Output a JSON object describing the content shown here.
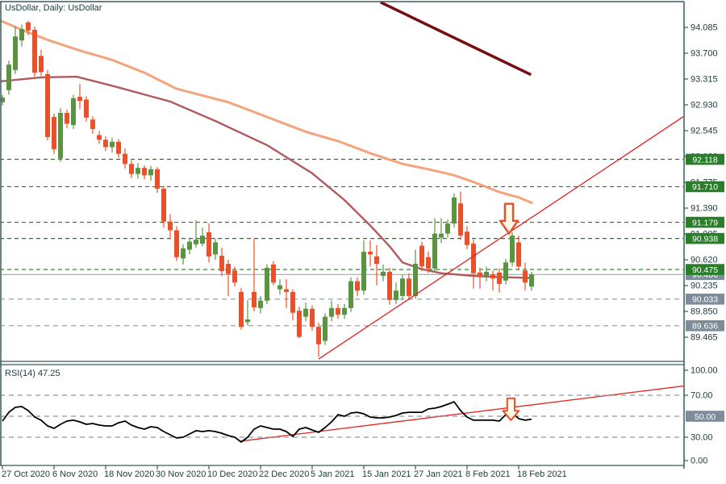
{
  "window": {
    "title": "UsDollar, Daily:  UsDollar"
  },
  "colors": {
    "background": "#ffffff",
    "frame": "#3a5a5a",
    "bull": "#5a9440",
    "bear": "#e8512a",
    "ma_slow": "#f3a47c",
    "ma_fast": "#b15a5e",
    "trendline_red": "#e42222",
    "trendline_maroon": "#750d12",
    "level_green": "#1e7d1e",
    "level_gray": "#8a97a3",
    "current_price_line": "#a6a6a6",
    "badge_green": "#2a7e2a",
    "badge_gray": "#7e8b99",
    "rsi_line": "#000000",
    "text": "#223c3c",
    "arrow_stroke": "#e8512a",
    "arrow_fill": "#fffbe8"
  },
  "chart_data": {
    "type": "candlestick",
    "symbol": "UsDollar",
    "timeframe": "Daily",
    "price_axis": {
      "ticks": [
        "94.085",
        "93.700",
        "93.315",
        "92.930",
        "92.545",
        "91.390",
        "90.620",
        "90.235",
        "89.850",
        "89.465"
      ],
      "hidden_ticks": [
        "92.160",
        "91.775",
        "91.005"
      ],
      "ylim": [
        89.15,
        94.35
      ]
    },
    "green_levels": [
      {
        "value": 92.118,
        "label": "92.118"
      },
      {
        "value": 91.71,
        "label": "91.710"
      },
      {
        "value": 91.179,
        "label": "91.179"
      },
      {
        "value": 90.938,
        "label": "90.938"
      },
      {
        "value": 90.475,
        "label": "90.475"
      }
    ],
    "gray_levels": [
      {
        "value": 90.033,
        "label": "90.033"
      },
      {
        "value": 89.636,
        "label": "89.636"
      }
    ],
    "current_price": {
      "value": 90.4,
      "label": "90.400"
    },
    "x_ticks": [
      {
        "i": 0,
        "label": "27 Oct 2020"
      },
      {
        "i": 8,
        "label": "6 Nov 2020"
      },
      {
        "i": 16,
        "label": "18 Nov 2020"
      },
      {
        "i": 24,
        "label": "30 Nov 2020"
      },
      {
        "i": 32,
        "label": "10 Dec 2020"
      },
      {
        "i": 40,
        "label": "22 Dec 2020"
      },
      {
        "i": 48,
        "label": "5 Jan 2021"
      },
      {
        "i": 56,
        "label": "15 Jan 2021"
      },
      {
        "i": 64,
        "label": "27 Jan 2021"
      },
      {
        "i": 72,
        "label": "8 Feb 2021"
      },
      {
        "i": 80,
        "label": "18 Feb 2021"
      }
    ],
    "candles": [
      [
        "27 Oct 2020",
        92.97,
        93.08,
        92.92,
        93.04
      ],
      [
        "28 Oct 2020",
        93.15,
        93.59,
        93.08,
        93.53
      ],
      [
        "29 Oct 2020",
        93.45,
        94.1,
        93.39,
        93.95
      ],
      [
        "30 Oct 2020",
        93.89,
        94.13,
        93.8,
        94.06
      ],
      [
        "2 Nov 2020",
        94.16,
        94.18,
        93.97,
        94.04
      ],
      [
        "3 Nov 2020",
        94.05,
        94.1,
        93.35,
        93.41
      ],
      [
        "4 Nov 2020",
        93.66,
        93.75,
        93.36,
        93.42
      ],
      [
        "5 Nov 2020",
        93.39,
        93.45,
        92.4,
        92.45
      ],
      [
        "6 Nov 2020",
        92.75,
        92.8,
        92.2,
        92.27
      ],
      [
        "9 Nov 2020",
        92.13,
        92.88,
        92.08,
        92.81
      ],
      [
        "10 Nov 2020",
        92.81,
        92.86,
        92.58,
        92.65
      ],
      [
        "11 Nov 2020",
        92.63,
        93.08,
        92.57,
        93.03
      ],
      [
        "12 Nov 2020",
        93.05,
        93.24,
        92.87,
        92.99
      ],
      [
        "13 Nov 2020",
        93.01,
        93.06,
        92.68,
        92.74
      ],
      [
        "16 Nov 2020",
        92.71,
        92.76,
        92.5,
        92.57
      ],
      [
        "17 Nov 2020",
        92.48,
        92.54,
        92.35,
        92.41
      ],
      [
        "18 Nov 2020",
        92.41,
        92.46,
        92.24,
        92.3
      ],
      [
        "19 Nov 2020",
        92.3,
        92.44,
        92.22,
        92.38
      ],
      [
        "20 Nov 2020",
        92.38,
        92.42,
        92.14,
        92.2
      ],
      [
        "23 Nov 2020",
        92.2,
        92.28,
        91.98,
        92.05
      ],
      [
        "24 Nov 2020",
        92.05,
        92.1,
        91.84,
        91.9
      ],
      [
        "25 Nov 2020",
        91.9,
        92.06,
        91.83,
        91.99
      ],
      [
        "26 Nov 2020",
        91.99,
        92.03,
        91.82,
        91.88
      ],
      [
        "27 Nov 2020",
        91.88,
        92.02,
        91.8,
        91.97
      ],
      [
        "30 Nov 2020",
        91.97,
        92.0,
        91.62,
        91.68
      ],
      [
        "1 Dec 2020",
        91.68,
        91.72,
        91.1,
        91.19
      ],
      [
        "2 Dec 2020",
        91.19,
        91.3,
        90.95,
        91.06
      ],
      [
        "3 Dec 2020",
        91.06,
        91.12,
        90.6,
        90.66
      ],
      [
        "4 Dec 2020",
        90.64,
        90.85,
        90.55,
        90.79
      ],
      [
        "7 Dec 2020",
        90.77,
        90.95,
        90.7,
        90.89
      ],
      [
        "8 Dec 2020",
        90.85,
        91.21,
        90.8,
        90.92
      ],
      [
        "9 Dec 2020",
        90.86,
        91.1,
        90.82,
        90.98
      ],
      [
        "10 Dec 2020",
        91.03,
        91.16,
        90.58,
        90.67
      ],
      [
        "11 Dec 2020",
        90.7,
        90.94,
        90.62,
        90.88
      ],
      [
        "14 Dec 2020",
        90.68,
        90.8,
        90.38,
        90.45
      ],
      [
        "15 Dec 2020",
        90.56,
        90.62,
        90.08,
        90.41
      ],
      [
        "16 Dec 2020",
        90.46,
        90.52,
        90.22,
        90.28
      ],
      [
        "17 Dec 2020",
        90.14,
        90.2,
        89.58,
        89.62
      ],
      [
        "18 Dec 2020",
        89.69,
        90.02,
        89.64,
        89.73
      ],
      [
        "21 Dec 2020",
        90.14,
        90.93,
        89.85,
        89.91
      ],
      [
        "22 Dec 2020",
        89.9,
        90.08,
        89.82,
        90.01
      ],
      [
        "23 Dec 2020",
        90.01,
        90.55,
        89.96,
        90.5
      ],
      [
        "24 Dec 2020",
        90.55,
        90.6,
        90.24,
        90.28
      ],
      [
        "28 Dec 2020",
        90.18,
        90.33,
        90.1,
        90.24
      ],
      [
        "29 Dec 2020",
        90.18,
        90.33,
        89.9,
        90.14
      ],
      [
        "30 Dec 2020",
        90.14,
        90.18,
        89.72,
        89.83
      ],
      [
        "31 Dec 2020",
        89.86,
        89.92,
        89.45,
        89.47
      ],
      [
        "4 Jan 2021",
        89.77,
        89.98,
        89.7,
        89.89
      ],
      [
        "5 Jan 2021",
        89.89,
        89.94,
        89.56,
        89.62
      ],
      [
        "6 Jan 2021",
        89.62,
        89.68,
        89.17,
        89.36
      ],
      [
        "7 Jan 2021",
        89.41,
        89.82,
        89.35,
        89.77
      ],
      [
        "8 Jan 2021",
        89.77,
        90.01,
        89.7,
        89.9
      ],
      [
        "11 Jan 2021",
        89.9,
        89.96,
        89.74,
        89.8
      ],
      [
        "12 Jan 2021",
        89.8,
        89.96,
        89.74,
        89.9
      ],
      [
        "13 Jan 2021",
        89.9,
        90.36,
        89.84,
        90.3
      ],
      [
        "14 Jan 2021",
        90.3,
        90.36,
        90.08,
        90.16
      ],
      [
        "15 Jan 2021",
        90.16,
        90.91,
        90.1,
        90.74
      ],
      [
        "18 Jan 2021",
        90.74,
        90.91,
        90.52,
        90.7
      ],
      [
        "19 Jan 2021",
        90.67,
        90.84,
        90.24,
        90.56
      ],
      [
        "20 Jan 2021",
        90.38,
        90.55,
        90.3,
        90.44
      ],
      [
        "21 Jan 2021",
        90.44,
        90.5,
        89.95,
        90.02
      ],
      [
        "22 Jan 2021",
        90.02,
        90.28,
        89.96,
        90.16
      ],
      [
        "25 Jan 2021",
        90.08,
        90.4,
        90.02,
        90.34
      ],
      [
        "26 Jan 2021",
        90.34,
        90.42,
        90.02,
        90.08
      ],
      [
        "27 Jan 2021",
        90.08,
        90.77,
        90.04,
        90.56
      ],
      [
        "28 Jan 2021",
        90.83,
        90.89,
        90.45,
        90.52
      ],
      [
        "29 Jan 2021",
        90.66,
        90.74,
        90.42,
        90.49
      ],
      [
        "1 Feb 2021",
        90.49,
        91.24,
        90.44,
        91.01
      ],
      [
        "2 Feb 2021",
        90.95,
        91.24,
        90.87,
        91.01
      ],
      [
        "3 Feb 2021",
        91.01,
        91.22,
        90.95,
        91.16
      ],
      [
        "4 Feb 2021",
        91.16,
        91.61,
        91.1,
        91.55
      ],
      [
        "5 Feb 2021",
        91.46,
        91.64,
        90.92,
        90.98
      ],
      [
        "8 Feb 2021",
        91.04,
        91.12,
        90.78,
        90.84
      ],
      [
        "9 Feb 2021",
        90.86,
        90.92,
        90.19,
        90.42
      ],
      [
        "10 Feb 2021",
        90.43,
        90.5,
        90.19,
        90.37
      ],
      [
        "11 Feb 2021",
        90.38,
        90.52,
        90.3,
        90.44
      ],
      [
        "12 Feb 2021",
        90.4,
        90.46,
        90.16,
        90.34
      ],
      [
        "15 Feb 2021",
        90.43,
        90.49,
        90.13,
        90.26
      ],
      [
        "16 Feb 2021",
        90.31,
        90.63,
        90.25,
        90.58
      ],
      [
        "17 Feb 2021",
        90.58,
        91.03,
        90.52,
        90.98
      ],
      [
        "18 Feb 2021",
        90.88,
        90.98,
        90.46,
        90.52
      ],
      [
        "19 Feb 2021",
        90.46,
        90.58,
        90.16,
        90.28
      ],
      [
        "22 Feb 2021",
        90.22,
        90.44,
        90.16,
        90.4
      ]
    ],
    "ma_slow_points": [
      [
        -0.4,
        94.19
      ],
      [
        3.5,
        94.03
      ],
      [
        7,
        93.9
      ],
      [
        12,
        93.74
      ],
      [
        17,
        93.6
      ],
      [
        22,
        93.41
      ],
      [
        27,
        93.17
      ],
      [
        35,
        92.97
      ],
      [
        41,
        92.75
      ],
      [
        47,
        92.53
      ],
      [
        52,
        92.39
      ],
      [
        57,
        92.21
      ],
      [
        62,
        92.05
      ],
      [
        66,
        91.97
      ],
      [
        70,
        91.88
      ],
      [
        73,
        91.78
      ],
      [
        77,
        91.63
      ],
      [
        80,
        91.55
      ],
      [
        82,
        91.47
      ]
    ],
    "ma_fast_points": [
      [
        -0.4,
        93.28
      ],
      [
        6,
        93.34
      ],
      [
        11.5,
        93.35
      ],
      [
        18,
        93.19
      ],
      [
        26,
        92.98
      ],
      [
        33,
        92.69
      ],
      [
        41,
        92.33
      ],
      [
        48,
        91.91
      ],
      [
        53,
        91.51
      ],
      [
        57,
        91.13
      ],
      [
        60,
        90.82
      ],
      [
        62,
        90.58
      ],
      [
        65,
        90.48
      ],
      [
        68,
        90.42
      ],
      [
        73,
        90.38
      ],
      [
        77,
        90.36
      ],
      [
        82,
        90.35
      ]
    ],
    "trendlines": [
      {
        "name": "ascending-support-trendline",
        "panel": "price",
        "from": {
          "i": 49,
          "price": 89.14
        },
        "to": {
          "i": 105.6,
          "price": 92.76
        },
        "color_key": "trendline_red",
        "width": 1.3
      },
      {
        "name": "descending-resistance-trendline",
        "panel": "price",
        "from": {
          "i": 58.6,
          "price": 94.46
        },
        "to": {
          "i": 81.9,
          "price": 93.38
        },
        "color_key": "trendline_maroon",
        "width": 3.5
      },
      {
        "name": "rsi-ascending-trendline",
        "panel": "rsi",
        "from": {
          "i": 36.9,
          "rsi": 26.2
        },
        "to": {
          "i": 106,
          "rsi": 79.2
        },
        "color_key": "trendline_red",
        "width": 1.3
      }
    ],
    "annotations": [
      {
        "name": "down-arrow-price",
        "panel": "price",
        "i": 78.5,
        "tip_price": 91.01,
        "w": 22,
        "h": 37
      },
      {
        "name": "down-arrow-rsi",
        "panel": "rsi",
        "i": 78.8,
        "tip_rsi": 46.3,
        "w": 20,
        "h": 27
      }
    ],
    "rsi": {
      "label": "RSI(14) 47.25",
      "period": 14,
      "current_value": 47.25,
      "axis_ticks": [
        {
          "label": "100.00",
          "r": 100,
          "badge": false
        },
        {
          "label": "70.00",
          "r": 70,
          "badge": false
        },
        {
          "label": "50.00",
          "r": 50,
          "badge": true
        },
        {
          "label": "30.00",
          "r": 30,
          "badge": false
        },
        {
          "label": "0.00",
          "r": 0,
          "badge": false
        }
      ],
      "grid_levels": [
        70,
        50,
        30
      ],
      "values": [
        45.4,
        53.8,
        58.5,
        59.2,
        55.4,
        49.2,
        46.2,
        40.8,
        38.5,
        42.3,
        45.4,
        46.2,
        44.6,
        42.3,
        43.1,
        41.5,
        40.8,
        40.8,
        43.8,
        45.4,
        41.5,
        39.2,
        37.7,
        40.0,
        39.2,
        35.4,
        32.3,
        29.2,
        30.0,
        33.1,
        36.2,
        35.4,
        36.2,
        35.4,
        33.8,
        31.5,
        30.0,
        25.4,
        30.0,
        37.7,
        40.8,
        39.2,
        37.7,
        37.7,
        35.4,
        30.8,
        37.7,
        39.2,
        36.9,
        34.6,
        39.2,
        44.6,
        51.5,
        50.0,
        53.1,
        53.8,
        52.3,
        49.2,
        48.5,
        48.5,
        49.2,
        50.8,
        53.1,
        53.8,
        53.8,
        53.8,
        56.9,
        57.7,
        59.2,
        61.5,
        63.8,
        55.4,
        49.2,
        46.2,
        46.2,
        46.2,
        46.2,
        45.4,
        51.5,
        53.1,
        47.7,
        46.2,
        47.25
      ]
    }
  }
}
